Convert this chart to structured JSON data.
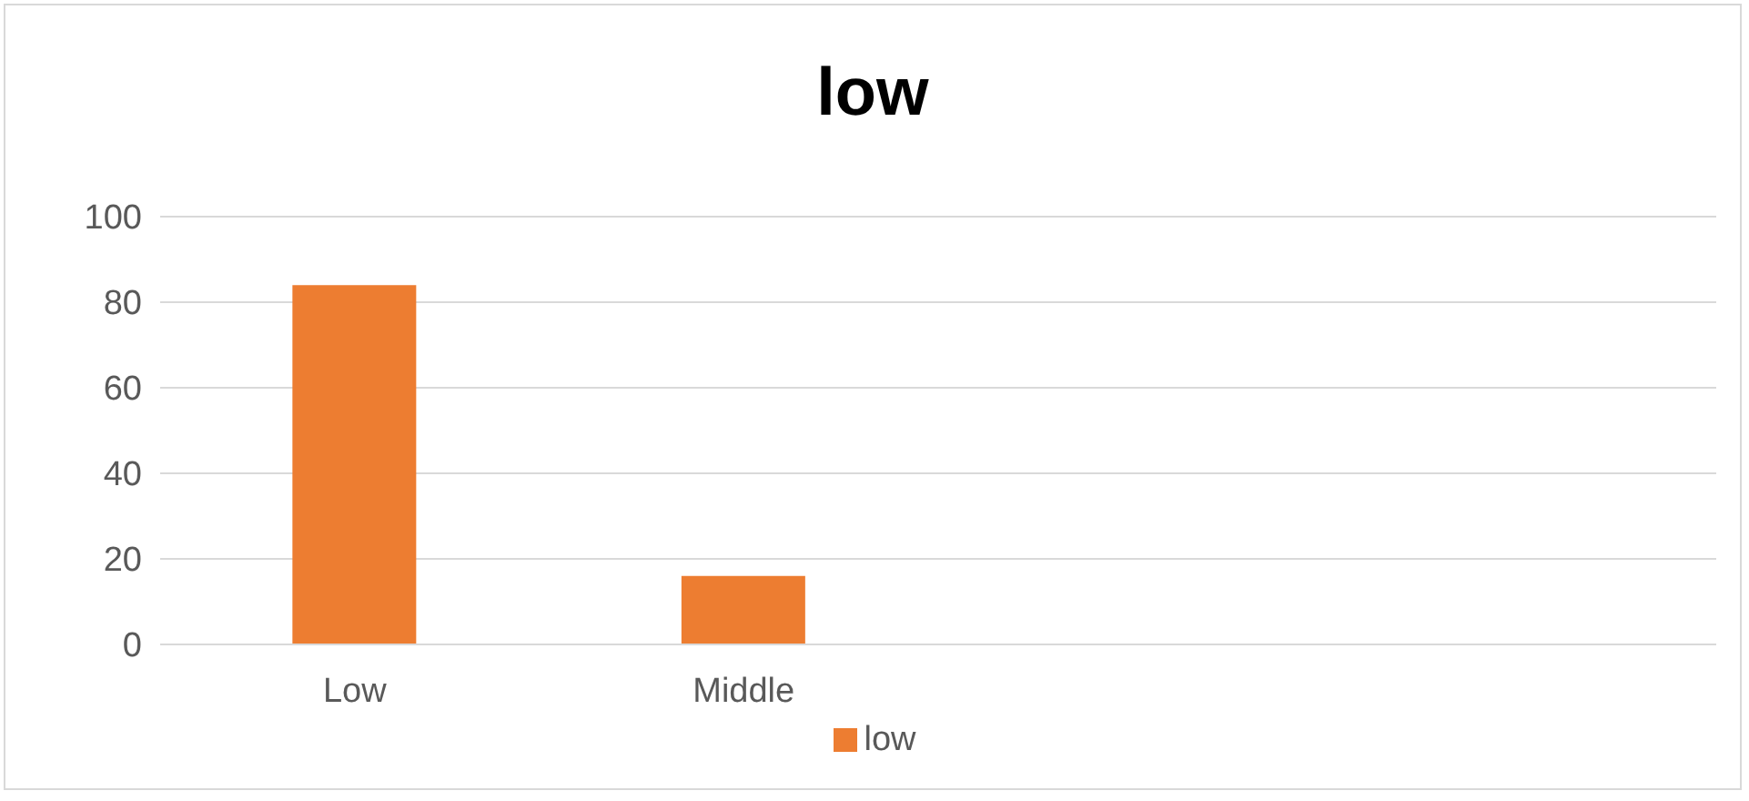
{
  "chart_data": {
    "type": "bar",
    "title": "low",
    "categories": [
      "Low",
      "Middle",
      null,
      null
    ],
    "series": [
      {
        "name": "low",
        "color": "#ed7d31",
        "values": [
          84,
          16,
          null,
          null
        ]
      }
    ],
    "ylim": [
      0,
      100
    ],
    "yticks": [
      0,
      20,
      40,
      60,
      80,
      100
    ],
    "grid": "y",
    "legend": "bottom"
  }
}
